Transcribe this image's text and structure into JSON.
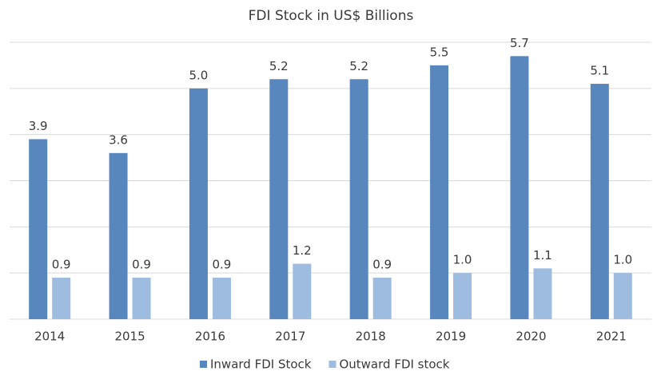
{
  "chart_data": {
    "type": "bar",
    "title": "FDI Stock in US$ Billions",
    "categories": [
      "2014",
      "2015",
      "2016",
      "2017",
      "2018",
      "2019",
      "2020",
      "2021"
    ],
    "series": [
      {
        "name": "Inward FDI Stock",
        "color": "#5787bd",
        "values": [
          3.9,
          3.6,
          5.0,
          5.2,
          5.2,
          5.5,
          5.7,
          5.1
        ],
        "value_labels": [
          "3.9",
          "3.6",
          "5.0",
          "5.2",
          "5.2",
          "5.5",
          "5.7",
          "5.1"
        ]
      },
      {
        "name": "Outward FDI stock",
        "color": "#9dbce0",
        "values": [
          0.9,
          0.9,
          0.9,
          1.2,
          0.9,
          1.0,
          1.1,
          1.0
        ],
        "value_labels": [
          "0.9",
          "0.9",
          "0.9",
          "1.2",
          "0.9",
          "1.0",
          "1.1",
          "1.0"
        ]
      }
    ],
    "ylim": [
      0,
      6
    ],
    "yticks": [
      0,
      1,
      2,
      3,
      4,
      5,
      6
    ],
    "grid": true,
    "legend": "bottom"
  }
}
